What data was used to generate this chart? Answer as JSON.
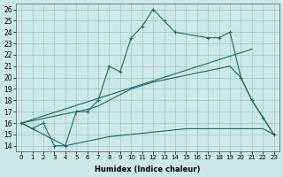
{
  "xlabel": "Humidex (Indice chaleur)",
  "background_color": "#cce8e8",
  "line_color": "#1a6b6b",
  "xlim": [
    -0.5,
    23.5
  ],
  "ylim": [
    13.5,
    26.5
  ],
  "xticks": [
    0,
    1,
    2,
    3,
    4,
    5,
    6,
    7,
    8,
    9,
    10,
    11,
    12,
    13,
    14,
    15,
    16,
    17,
    18,
    19,
    20,
    21,
    22,
    23
  ],
  "yticks": [
    14,
    15,
    16,
    17,
    18,
    19,
    20,
    21,
    22,
    23,
    24,
    25,
    26
  ],
  "line1_x": [
    0,
    1,
    2,
    3,
    4,
    5,
    6,
    7,
    8,
    9,
    10,
    11,
    12,
    13,
    14,
    17,
    18,
    19,
    20,
    21,
    22,
    23
  ],
  "line1_y": [
    16,
    15.5,
    16,
    14,
    14,
    17,
    17,
    18,
    21,
    20.5,
    23.5,
    24.5,
    26,
    25,
    24,
    23.5,
    23.5,
    24,
    20,
    18,
    16.5,
    15
  ],
  "line2_x": [
    0,
    21
  ],
  "line2_y": [
    16,
    22.5
  ],
  "line3_x": [
    0,
    5,
    6,
    7,
    8,
    9,
    10,
    11,
    12,
    13,
    14,
    15,
    16,
    17,
    18,
    19,
    20,
    21,
    22,
    23
  ],
  "line3_y": [
    16,
    17,
    17.2,
    17.5,
    18,
    18.5,
    19,
    19.3,
    19.6,
    19.8,
    20,
    20.2,
    20.4,
    20.6,
    20.8,
    21,
    20,
    18,
    16.5,
    15
  ],
  "line4_x": [
    0,
    4,
    5,
    6,
    7,
    8,
    9,
    10,
    11,
    12,
    13,
    14,
    15,
    16,
    17,
    18,
    19,
    20,
    21,
    22,
    23
  ],
  "line4_y": [
    16,
    14,
    14.2,
    14.4,
    14.6,
    14.8,
    14.9,
    15.0,
    15.1,
    15.2,
    15.3,
    15.4,
    15.5,
    15.5,
    15.5,
    15.5,
    15.5,
    15.5,
    15.5,
    15.5,
    15
  ]
}
